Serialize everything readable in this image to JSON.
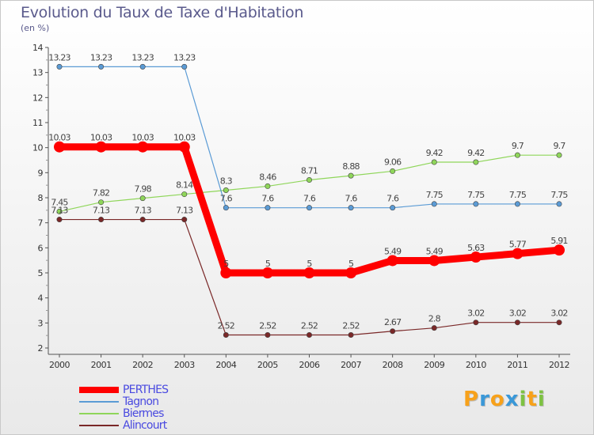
{
  "title": "Evolution du Taux de Taxe d'Habitation",
  "subtitle": "(en %)",
  "logo": {
    "letters": [
      "P",
      "r",
      "o",
      "x",
      "i",
      "t",
      "i"
    ],
    "colors": [
      "#f7a11a",
      "#3a98d8",
      "#f7a11a",
      "#3a98d8",
      "#7dc242",
      "#f7a11a",
      "#7dc242"
    ]
  },
  "chart_data": {
    "type": "line",
    "x": [
      "2000",
      "2001",
      "2002",
      "2003",
      "2004",
      "2005",
      "2006",
      "2007",
      "2008",
      "2009",
      "2010",
      "2011",
      "2012"
    ],
    "ylim": [
      2,
      14
    ],
    "yticks": [
      "2",
      "3",
      "4",
      "5",
      "6",
      "7",
      "8",
      "9",
      "10",
      "11",
      "12",
      "13",
      "14"
    ],
    "grid": false,
    "legend_position": "bottom-left",
    "series": [
      {
        "name": "PERTHES",
        "color": "#ff0000",
        "values": [
          10.03,
          10.03,
          10.03,
          10.03,
          5,
          5,
          5,
          5,
          5.49,
          5.49,
          5.63,
          5.77,
          5.91
        ],
        "labels": [
          "10.03",
          "10.03",
          "10.03",
          "10.03",
          "5",
          "5",
          "5",
          "5",
          "5.49",
          "5.49",
          "5.63",
          "5.77",
          "5.91"
        ]
      },
      {
        "name": "Tagnon",
        "color": "#5b9bd5",
        "values": [
          13.23,
          13.23,
          13.23,
          13.23,
          7.6,
          7.6,
          7.6,
          7.6,
          7.6,
          7.75,
          7.75,
          7.75,
          7.75
        ],
        "labels": [
          "13.23",
          "13.23",
          "13.23",
          "13.23",
          "7.6",
          "7.6",
          "7.6",
          "7.6",
          "7.6",
          "7.75",
          "7.75",
          "7.75",
          "7.75"
        ]
      },
      {
        "name": "Biermes",
        "color": "#8fd65a",
        "values": [
          7.45,
          7.82,
          7.98,
          8.14,
          8.3,
          8.46,
          8.71,
          8.88,
          9.06,
          9.42,
          9.42,
          9.7,
          9.7
        ],
        "labels": [
          "7.45",
          "7.82",
          "7.98",
          "8.14",
          "8.3",
          "8.46",
          "8.71",
          "8.88",
          "9.06",
          "9.42",
          "9.42",
          "9.7",
          "9.7"
        ]
      },
      {
        "name": "Alincourt",
        "color": "#7a2828",
        "values": [
          7.13,
          7.13,
          7.13,
          7.13,
          2.52,
          2.52,
          2.52,
          2.52,
          2.67,
          2.8,
          3.02,
          3.02,
          3.02
        ],
        "labels": [
          "7.13",
          "7.13",
          "7.13",
          "7.13",
          "2.52",
          "2.52",
          "2.52",
          "2.52",
          "2.67",
          "2.8",
          "3.02",
          "3.02",
          "3.02"
        ]
      }
    ]
  }
}
